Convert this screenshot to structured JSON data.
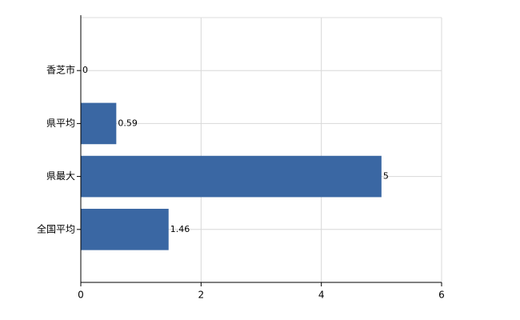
{
  "chart_data": {
    "type": "barh",
    "categories": [
      "香芝市",
      "県平均",
      "県最大",
      "全国平均"
    ],
    "values": [
      0,
      0.59,
      5,
      1.46
    ],
    "color": "#3a67a3",
    "xlim": [
      0,
      6
    ],
    "xticks": [
      0,
      2,
      4,
      6
    ],
    "grid": true
  }
}
